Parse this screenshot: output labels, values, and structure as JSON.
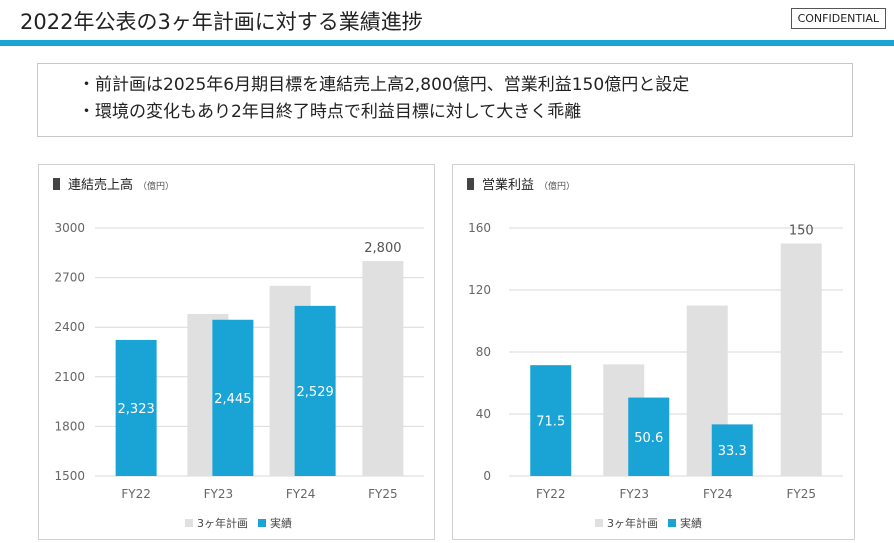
{
  "header": {
    "title": "2022年公表の3ヶ年計画に対する業績進捗",
    "confidential": "CONFIDENTIAL"
  },
  "bullets": [
    "・前計画は2025年6月期目標を連結売上高2,800億円、営業利益150億円と設定",
    "・環境の変化もあり2年目終了時点で利益目標に対して大きく乖離"
  ],
  "colors": {
    "plan": "#e0e0e0",
    "actual": "#1aa3d5",
    "accent": "#1aa3d5"
  },
  "chart_data": [
    {
      "type": "bar",
      "title": "連結売上高",
      "unit": "（億円）",
      "categories": [
        "FY22",
        "FY23",
        "FY24",
        "FY25"
      ],
      "ylim": [
        1500,
        3000
      ],
      "yticks": [
        "1500",
        "1800",
        "2100",
        "2400",
        "2700",
        "3000"
      ],
      "series": [
        {
          "name": "3ヶ年計画",
          "values": [
            null,
            2480,
            2650,
            2800
          ],
          "labels": [
            "",
            "",
            "",
            "2,800"
          ]
        },
        {
          "name": "実績",
          "values": [
            2323,
            2445,
            2529,
            null
          ],
          "labels": [
            "2,323",
            "2,445",
            "2,529",
            ""
          ]
        }
      ],
      "legend_position": "bottom",
      "grid": true
    },
    {
      "type": "bar",
      "title": "営業利益",
      "unit": "（億円）",
      "categories": [
        "FY22",
        "FY23",
        "FY24",
        "FY25"
      ],
      "ylim": [
        0,
        160
      ],
      "yticks": [
        "0",
        "40",
        "80",
        "120",
        "160"
      ],
      "series": [
        {
          "name": "3ヶ年計画",
          "values": [
            null,
            72,
            110,
            150
          ],
          "labels": [
            "",
            "",
            "",
            "150"
          ]
        },
        {
          "name": "実績",
          "values": [
            71.5,
            50.6,
            33.3,
            null
          ],
          "labels": [
            "71.5",
            "50.6",
            "33.3",
            ""
          ]
        }
      ],
      "legend_position": "bottom",
      "grid": true
    }
  ]
}
